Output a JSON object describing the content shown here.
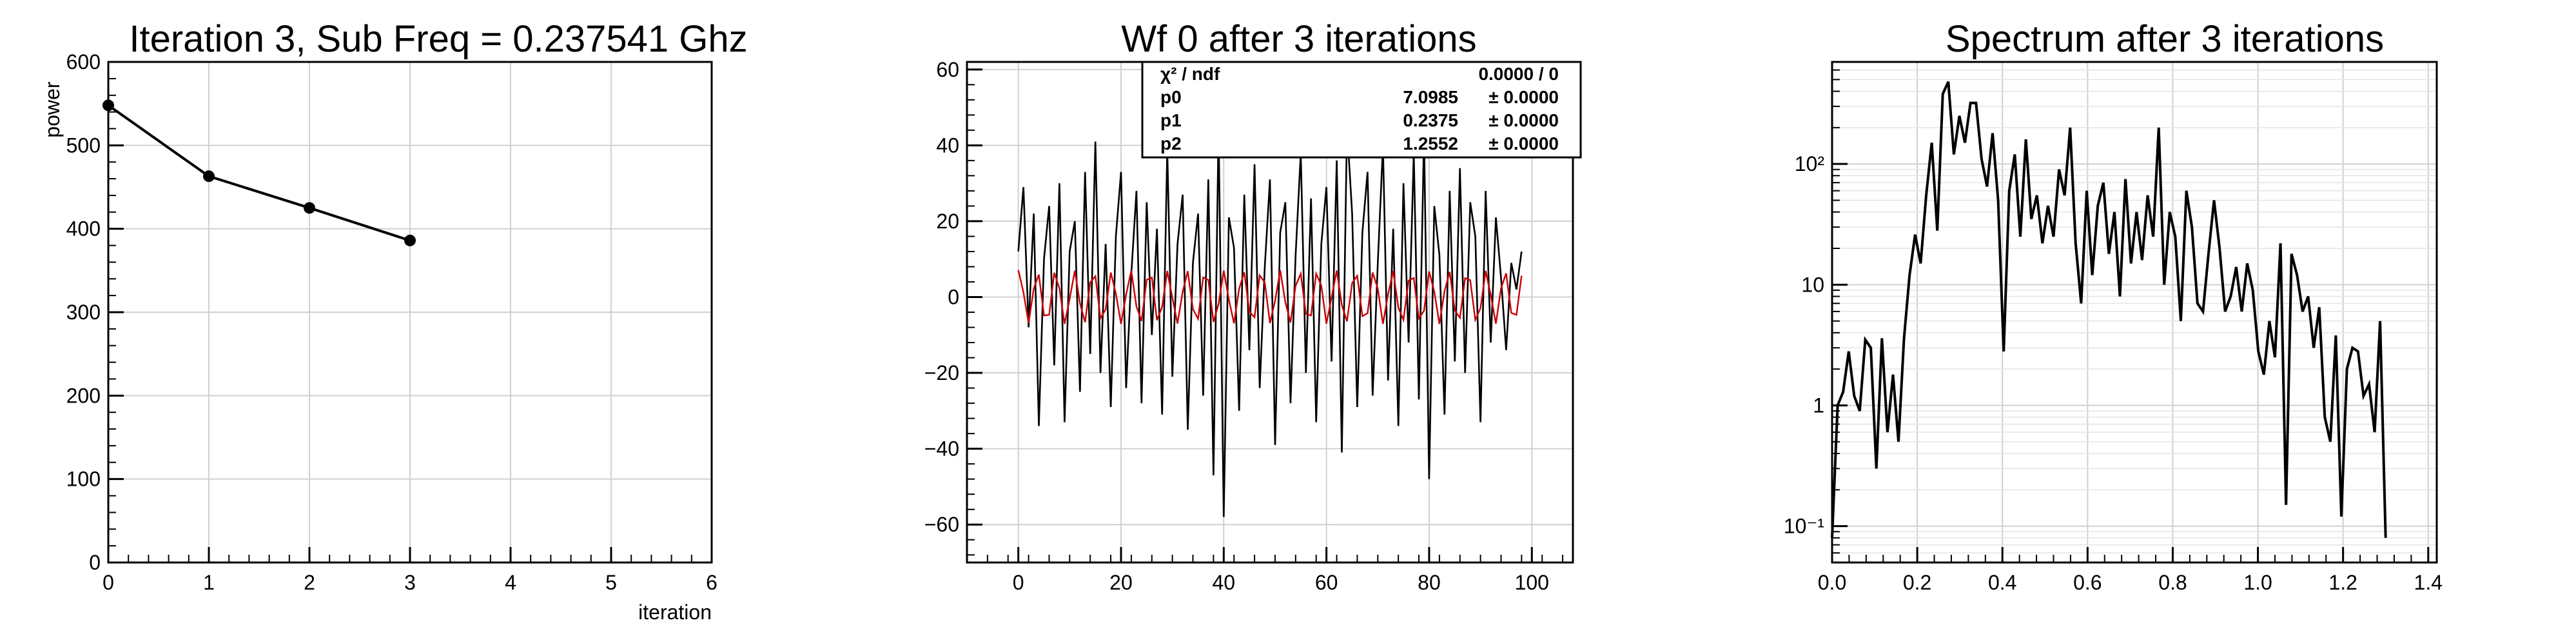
{
  "chart_data": [
    {
      "type": "line",
      "title": "Iteration 3, Sub Freq = 0.237541 Ghz",
      "xlabel": "iteration",
      "ylabel": "power",
      "xlim": [
        0,
        6
      ],
      "ylim": [
        0,
        600
      ],
      "grid": true,
      "x": [
        0,
        1,
        2,
        3
      ],
      "series": [
        {
          "values": [
            548,
            463,
            425,
            386
          ],
          "color": "#000000"
        }
      ],
      "x_ticks": [
        "0",
        "1",
        "2",
        "3",
        "4",
        "5",
        "6"
      ],
      "y_ticks": [
        "0",
        "100",
        "200",
        "300",
        "400",
        "500",
        "600"
      ]
    },
    {
      "type": "line",
      "title": "Wf 0 after 3 iterations",
      "xlim": [
        -10,
        108
      ],
      "ylim": [
        -70,
        62
      ],
      "grid": true,
      "x_ticks": [
        "0",
        "20",
        "40",
        "60",
        "80",
        "100"
      ],
      "y_ticks": [
        "−60",
        "−40",
        "−20",
        "0",
        "20",
        "40",
        "60"
      ],
      "series": [
        {
          "values": [
            12,
            29,
            -8,
            22,
            -34,
            10,
            24,
            -18,
            30,
            -33,
            12,
            20,
            -25,
            33,
            -15,
            41,
            -20,
            14,
            -29,
            16,
            33,
            -24,
            6,
            28,
            -28,
            25,
            -10,
            18,
            -31,
            39,
            -21,
            14,
            27,
            -35,
            9,
            22,
            -26,
            31,
            -47,
            45,
            -58,
            21,
            13,
            -30,
            27,
            -14,
            35,
            -24,
            8,
            31,
            -39,
            17,
            25,
            -28,
            11,
            38,
            -20,
            26,
            -33,
            14,
            29,
            -17,
            36,
            -41,
            45,
            22,
            -29,
            17,
            33,
            -26,
            9,
            40,
            -22,
            18,
            -34,
            30,
            -12,
            38,
            -27,
            43,
            -48,
            24,
            11,
            -31,
            28,
            -17,
            34,
            -20,
            25,
            16,
            -33,
            28,
            -12,
            21,
            5,
            -14,
            9,
            2,
            12
          ],
          "color": "#000000"
        },
        {
          "values": [
            7.0985,
            1.25,
            -6.85,
            2.24,
            5.93,
            -4.87,
            -4.69,
            6.39,
            2.29,
            -7.06,
            -0.46,
            6.94,
            -1.66,
            -6.65,
            3.87,
            5.5,
            -5.58,
            -3.27,
            6.46,
            0.91,
            -7.1,
            0.68,
            6.99,
            -2.48,
            -6.31,
            4.58,
            5.15,
            -6.09,
            -2.62,
            6.87,
            -0.17,
            -6.99,
            1.36,
            6.84,
            -3.15,
            -5.75,
            5.2,
            4.52,
            -6.55,
            -1.81,
            6.97,
            -0.63,
            -6.94,
            2.19,
            6.51,
            -3.88,
            -5.34,
            5.72,
            3.81,
            -6.87,
            -0.97,
            7.06,
            -1.38,
            -6.72,
            2.96,
            6.13,
            -4.5,
            -4.85,
            6.13,
            3.04,
            -7.03,
            -0.12,
            6.99,
            -2.12,
            -6.41,
            3.68,
            5.6,
            -5.03,
            -4.28,
            6.48,
            2.23,
            -7.06,
            0.72,
            6.85,
            -2.82,
            -6.0,
            4.33,
            5.01,
            -5.61,
            -3.61,
            6.75,
            1.39,
            -7.09,
            1.55,
            6.62,
            -3.54,
            -5.47,
            4.98,
            4.44,
            -6.02,
            -2.92,
            6.91,
            0.53,
            -7.01,
            2.34,
            6.25,
            -4.19,
            -4.7,
            5.63
          ],
          "color": "#cc0000"
        }
      ],
      "stats": {
        "header_label": "χ² / ndf",
        "header_value": "0.0000 / 0",
        "rows": [
          {
            "name": "p0",
            "value": "7.0985",
            "error": "± 0.0000"
          },
          {
            "name": "p1",
            "value": "0.2375",
            "error": "± 0.0000"
          },
          {
            "name": "p2",
            "value": "1.2552",
            "error": "± 0.0000"
          }
        ]
      }
    },
    {
      "type": "line",
      "title": "Spectrum after 3 iterations",
      "xlim": [
        0,
        1.42
      ],
      "ylim": [
        0.05,
        700
      ],
      "log_y": true,
      "grid": true,
      "x_ticks": [
        "0.0",
        "0.2",
        "0.4",
        "0.6",
        "0.8",
        "1.0",
        "1.2",
        "1.4"
      ],
      "y_ticks": [
        "10⁻¹",
        "1",
        "10",
        "10²"
      ],
      "series": [
        {
          "color": "#000000",
          "x": [
            0.0,
            0.013,
            0.026,
            0.039,
            0.052,
            0.065,
            0.078,
            0.091,
            0.104,
            0.117,
            0.13,
            0.143,
            0.156,
            0.169,
            0.182,
            0.195,
            0.208,
            0.221,
            0.234,
            0.247,
            0.26,
            0.273,
            0.286,
            0.299,
            0.312,
            0.325,
            0.338,
            0.351,
            0.364,
            0.377,
            0.39,
            0.403,
            0.416,
            0.429,
            0.442,
            0.455,
            0.468,
            0.481,
            0.494,
            0.507,
            0.52,
            0.533,
            0.546,
            0.559,
            0.572,
            0.585,
            0.598,
            0.611,
            0.624,
            0.637,
            0.65,
            0.663,
            0.676,
            0.689,
            0.702,
            0.715,
            0.728,
            0.741,
            0.754,
            0.767,
            0.78,
            0.793,
            0.806,
            0.819,
            0.832,
            0.845,
            0.858,
            0.871,
            0.884,
            0.897,
            0.91,
            0.923,
            0.936,
            0.949,
            0.962,
            0.975,
            0.988,
            1.001,
            1.014,
            1.027,
            1.04,
            1.053,
            1.066,
            1.079,
            1.092,
            1.105,
            1.118,
            1.131,
            1.144,
            1.157,
            1.17,
            1.183,
            1.196,
            1.209,
            1.222,
            1.235,
            1.248,
            1.261,
            1.274,
            1.287,
            1.3
          ],
          "values": [
            0.08,
            1.0,
            1.3,
            2.8,
            1.2,
            0.9,
            3.5,
            3.0,
            0.3,
            3.6,
            0.6,
            1.8,
            0.5,
            3.6,
            12.0,
            26.0,
            15.0,
            55.0,
            150.0,
            28.0,
            380.0,
            480.0,
            120.0,
            250.0,
            150.0,
            320.0,
            320.0,
            110.0,
            65.0,
            180.0,
            50.0,
            2.8,
            60.0,
            120.0,
            25.0,
            160.0,
            35.0,
            55.0,
            22.0,
            45.0,
            25.0,
            90.0,
            55.0,
            200.0,
            22.0,
            7.0,
            60.0,
            12.0,
            45.0,
            70.0,
            18.0,
            40.0,
            8.0,
            75.0,
            15.0,
            40.0,
            16.0,
            55.0,
            25.0,
            200.0,
            10.0,
            40.0,
            25.0,
            5.0,
            60.0,
            30.0,
            7.0,
            6.0,
            18.0,
            50.0,
            20.0,
            6.0,
            8.0,
            14.0,
            6.0,
            15.0,
            9.0,
            2.8,
            1.8,
            5.0,
            2.5,
            22.0,
            0.15,
            18.0,
            12.0,
            6.0,
            8.0,
            3.0,
            6.5,
            0.8,
            0.5,
            3.8,
            0.12,
            2.0,
            3.0,
            2.8,
            1.2,
            1.5,
            0.6,
            5.0,
            0.08
          ]
        }
      ]
    }
  ]
}
